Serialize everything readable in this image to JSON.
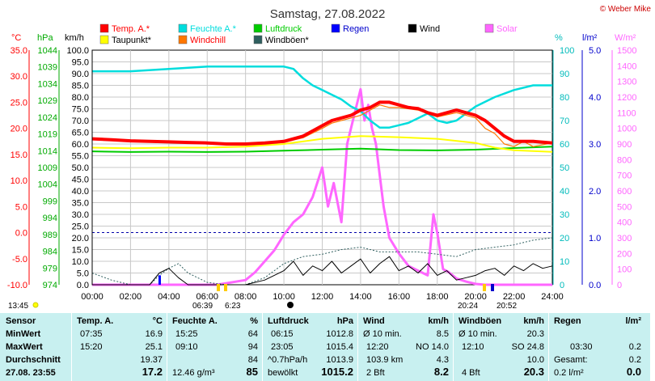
{
  "header": {
    "title": "Samstag, 27.08.2022",
    "copyright": "© Weber Mike"
  },
  "legend": [
    {
      "label": "Temp. A.*",
      "color": "#ff0000"
    },
    {
      "label": "Feuchte A.*",
      "color": "#00dddd"
    },
    {
      "label": "Luftdruck",
      "color": "#00cc00"
    },
    {
      "label": "Regen",
      "color": "#0000ff"
    },
    {
      "label": "Wind",
      "color": "#000000"
    },
    {
      "label": "Solar",
      "color": "#ff66ff"
    },
    {
      "label": "Taupunkt*",
      "color": "#ffff00"
    },
    {
      "label": "Windchill",
      "color": "#ff7700"
    },
    {
      "label": "Windböen*",
      "color": "#2f5f5f"
    }
  ],
  "axes": {
    "celsius": {
      "unit": "°C",
      "ticks": [
        "35.0",
        "30.0",
        "25.0",
        "20.0",
        "15.0",
        "10.0",
        "5.0",
        "0.0",
        "-5.0",
        "-10.0"
      ],
      "color": "#ff0000"
    },
    "hpa": {
      "unit": "hPa",
      "ticks": [
        "1044",
        "1039",
        "1034",
        "1029",
        "1024",
        "1019",
        "1014",
        "1009",
        "1004",
        "999",
        "994",
        "989",
        "984",
        "979",
        "974"
      ],
      "color": "#00aa00"
    },
    "kmh": {
      "unit": "km/h",
      "ticks": [
        "100.0",
        "95.0",
        "90.0",
        "85.0",
        "80.0",
        "75.0",
        "70.0",
        "65.0",
        "60.0",
        "55.0",
        "50.0",
        "45.0",
        "40.0",
        "35.0",
        "30.0",
        "25.0",
        "20.0",
        "15.0",
        "10.0",
        "5.0",
        "0.0"
      ],
      "color": "#000000"
    },
    "percent": {
      "unit": "%",
      "ticks": [
        "100",
        "90",
        "80",
        "70",
        "60",
        "50",
        "40",
        "30",
        "20",
        "10",
        "0"
      ],
      "color": "#00bbbb"
    },
    "rain": {
      "unit": "l/m²",
      "ticks": [
        "5.0",
        "4.0",
        "3.0",
        "2.0",
        "1.0",
        "0.0"
      ],
      "color": "#0000cc"
    },
    "solar": {
      "unit": "W/m²",
      "ticks": [
        "1500",
        "1400",
        "1300",
        "1200",
        "1100",
        "1000",
        "900",
        "800",
        "700",
        "600",
        "500",
        "400",
        "300",
        "200",
        "100",
        "0"
      ],
      "color": "#ff66ff"
    },
    "x_ticks": [
      "00:00",
      "02:00",
      "04:00",
      "06:00",
      "08:00",
      "10:00",
      "12:00",
      "14:00",
      "16:00",
      "18:00",
      "20:00",
      "22:00",
      "24:00"
    ]
  },
  "sun": {
    "sunrise_label": "06:39",
    "sunrise2_label": "6:23",
    "sunset_label": "20:24",
    "sunset2_label": "20:52",
    "moon_label": "13:45"
  },
  "chart_data": {
    "type": "line",
    "title": "Samstag, 27.08.2022",
    "x_unit": "hours",
    "xlim": [
      0,
      24
    ],
    "series": [
      {
        "name": "Temp. A.*",
        "axis": "celsius",
        "color": "#ff0000",
        "x": [
          0,
          1,
          2,
          3,
          4,
          5,
          6,
          7,
          8,
          9,
          10,
          10.5,
          11,
          11.5,
          12,
          12.5,
          13,
          13.5,
          14,
          14.5,
          15,
          15.5,
          16,
          16.5,
          17,
          17.5,
          18,
          18.5,
          19,
          19.5,
          20,
          20.5,
          21,
          21.5,
          22,
          22.5,
          23,
          24
        ],
        "y": [
          18.0,
          17.8,
          17.6,
          17.5,
          17.4,
          17.3,
          17.2,
          17.0,
          17.0,
          17.2,
          17.5,
          18.0,
          18.5,
          19.5,
          20.5,
          21.5,
          22.0,
          22.5,
          23.5,
          24.0,
          25.0,
          25.0,
          24.5,
          24.0,
          23.8,
          23.0,
          22.5,
          23.0,
          23.5,
          23.0,
          22.5,
          21.5,
          20.0,
          18.5,
          17.5,
          17.5,
          17.5,
          17.2
        ]
      },
      {
        "name": "Windchill",
        "axis": "celsius",
        "color": "#ff7700",
        "x": [
          0,
          2,
          4,
          6,
          8,
          10,
          11,
          12,
          12.5,
          13,
          13.5,
          14,
          14.5,
          15,
          15.5,
          16,
          17,
          18,
          19,
          20,
          20.5,
          21,
          21.5,
          22,
          22.5,
          23,
          24
        ],
        "y": [
          18.0,
          17.6,
          17.4,
          17.2,
          17.0,
          17.3,
          18.2,
          20.0,
          21.0,
          21.5,
          22.0,
          22.5,
          23.5,
          24.5,
          24.0,
          24.0,
          23.5,
          22.2,
          23.0,
          22.0,
          20.0,
          19.0,
          17.0,
          16.5,
          17.5,
          16.5,
          17.2
        ]
      },
      {
        "name": "Taupunkt*",
        "axis": "celsius",
        "color": "#ffff00",
        "x": [
          0,
          2,
          4,
          6,
          8,
          10,
          12,
          14,
          16,
          18,
          20,
          21,
          22,
          24
        ],
        "y": [
          16.3,
          16.2,
          16.3,
          16.3,
          16.5,
          17.0,
          18.0,
          18.5,
          18.3,
          18.0,
          17.2,
          16.3,
          15.8,
          15.5
        ]
      },
      {
        "name": "Feuchte A.*",
        "axis": "percent",
        "color": "#00dddd",
        "x": [
          0,
          2,
          4,
          6,
          8,
          9,
          10,
          10.5,
          11,
          11.5,
          12,
          12.5,
          13,
          13.5,
          14,
          14.5,
          15,
          15.5,
          16,
          16.5,
          17,
          17.5,
          18,
          18.5,
          19,
          19.5,
          20,
          21,
          22,
          23,
          24
        ],
        "y": [
          91,
          91,
          92,
          93,
          93,
          93,
          93,
          92,
          88,
          85,
          83,
          81,
          79,
          76,
          74,
          70,
          67,
          67,
          68,
          69,
          71,
          73,
          70,
          69,
          70,
          73,
          76,
          80,
          83,
          85,
          85
        ]
      },
      {
        "name": "Luftdruck",
        "axis": "hpa",
        "color": "#00cc00",
        "x": [
          0,
          2,
          4,
          6,
          8,
          10,
          12,
          14,
          16,
          18,
          20,
          22,
          24
        ],
        "y": [
          1013.8,
          1013.6,
          1013.7,
          1013.6,
          1013.7,
          1014.0,
          1014.3,
          1014.6,
          1014.2,
          1014.1,
          1014.3,
          1014.8,
          1015.2
        ]
      },
      {
        "name": "Wind",
        "axis": "kmh",
        "color": "#000000",
        "x": [
          0,
          1,
          2,
          3,
          3.5,
          4,
          4.5,
          5,
          6,
          7,
          8,
          9,
          9.5,
          10,
          10.5,
          11,
          11.5,
          12,
          12.5,
          13,
          13.5,
          14,
          14.5,
          15,
          15.5,
          16,
          16.5,
          17,
          17.5,
          18,
          18.5,
          19,
          19.5,
          20,
          20.5,
          21,
          21.5,
          22,
          22.5,
          23,
          23.5,
          24
        ],
        "y": [
          0,
          0,
          0,
          0,
          5,
          7,
          3,
          0,
          0,
          0,
          0,
          2,
          4,
          6,
          10,
          4,
          8,
          6,
          10,
          5,
          8,
          11,
          5,
          9,
          12,
          6,
          8,
          5,
          9,
          4,
          6,
          2,
          3,
          4,
          6,
          7,
          4,
          8,
          6,
          9,
          7,
          8
        ]
      },
      {
        "name": "Windböen*",
        "axis": "kmh",
        "color": "#2f5f5f",
        "x": [
          0,
          1,
          2,
          3,
          3.5,
          4,
          4.5,
          5,
          6,
          7,
          8,
          9,
          10,
          11,
          12,
          13,
          14,
          15,
          16,
          17,
          18,
          19,
          20,
          21,
          22,
          23,
          24
        ],
        "y": [
          5,
          2,
          0,
          0,
          4,
          7,
          9,
          5,
          1,
          0,
          0,
          3,
          9,
          12,
          13,
          15,
          16,
          14,
          14,
          14,
          13,
          12,
          15,
          16,
          17,
          19,
          20
        ]
      },
      {
        "name": "Solar",
        "axis": "solar",
        "color": "#ff66ff",
        "x": [
          0,
          6.5,
          7,
          8,
          8.5,
          9,
          9.5,
          10,
          10.5,
          11,
          11.5,
          12,
          12.3,
          12.6,
          13,
          13.3,
          13.6,
          14,
          14.2,
          14.4,
          14.6,
          14.8,
          15,
          15.2,
          15.5,
          16,
          16.5,
          17,
          17.5,
          17.8,
          18,
          18.3,
          18.6,
          19,
          19.5,
          20,
          20.5,
          24
        ],
        "y": [
          0,
          0,
          10,
          30,
          80,
          150,
          220,
          320,
          400,
          450,
          560,
          750,
          500,
          650,
          400,
          900,
          1050,
          1250,
          1050,
          1150,
          1000,
          900,
          700,
          500,
          300,
          200,
          120,
          90,
          60,
          450,
          330,
          100,
          80,
          40,
          20,
          5,
          0,
          0
        ]
      },
      {
        "name": "Regen",
        "axis": "rain",
        "color": "#0000ff",
        "x": [
          3.5,
          3.6
        ],
        "y": [
          0.2,
          0.2
        ]
      }
    ]
  },
  "stats": {
    "sensor": {
      "header": "Sensor",
      "rows": [
        "MinWert",
        "MaxWert",
        "Durchschnitt",
        "27.08. 23:55"
      ]
    },
    "temp": {
      "header": "Temp. A.",
      "unit": "°C",
      "min_time": "07:35",
      "min": "16.9",
      "max_time": "15:20",
      "max": "25.1",
      "avg": "19.37",
      "current": "17.2"
    },
    "humidity": {
      "header": "Feuchte A.",
      "unit": "%",
      "min_time": "15:25",
      "min": "64",
      "max_time": "09:10",
      "max": "94",
      "avg": "84",
      "abs_humidity": "12.46 g/m³",
      "current": "85"
    },
    "pressure": {
      "header": "Luftdruck",
      "unit": "hPa",
      "min_time": "06:15",
      "min": "1012.8",
      "max_time": "23:05",
      "max": "1015.4",
      "trend": "^0.7hPa/h",
      "avg": "1013.9",
      "weather": "bewölkt",
      "current": "1015.2"
    },
    "wind": {
      "header": "Wind",
      "unit": "km/h",
      "avg_label": "Ø 10 min.",
      "avg10": "8.5",
      "max_time": "12:20",
      "max_dir": "NO 14.0",
      "run": "103.9 km",
      "avg": "4.3",
      "bft": "2 Bft",
      "current": "8.2"
    },
    "gusts": {
      "header": "Windböen",
      "unit": "km/h",
      "avg_label": "Ø 10 min.",
      "avg10": "20.3",
      "max_time": "12:10",
      "max_dir": "SO 24.8",
      "avg": "10.0",
      "bft": "4 Bft",
      "current": "20.3"
    },
    "rain": {
      "header": "Regen",
      "unit": "l/m²",
      "time": "03:30",
      "r1": "0.2",
      "total_label": "Gesamt:",
      "total": "0.2",
      "rate": "0.2 l/m²",
      "current": "0.0"
    }
  }
}
